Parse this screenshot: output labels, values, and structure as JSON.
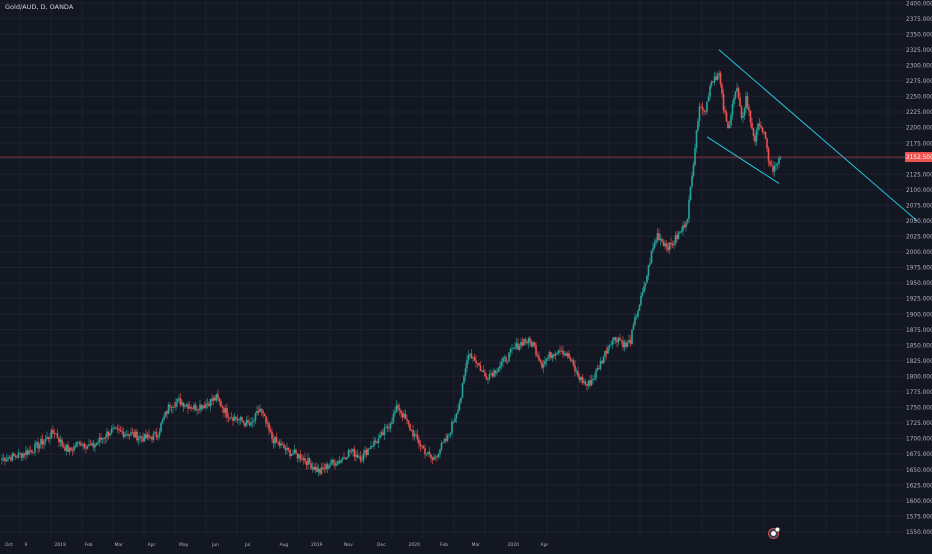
{
  "header": {
    "symbol_title": "Gold/AUD, D, OANDA"
  },
  "chart_data": {
    "type": "candlestick",
    "title": "",
    "symbol": "Gold/AUD",
    "interval": "D",
    "exchange": "OANDA",
    "ylim": [
      1540,
      2405
    ],
    "y_ticks": [
      1550,
      1575,
      1600,
      1625,
      1650,
      1675,
      1700,
      1725,
      1750,
      1775,
      1800,
      1825,
      1850,
      1875,
      1900,
      1925,
      1950,
      1975,
      2000,
      2025,
      2050,
      2075,
      2100,
      2125,
      2150,
      2175,
      2200,
      2225,
      2250,
      2275,
      2300,
      2325,
      2350,
      2375,
      2400
    ],
    "y_tick_decimals": 3,
    "x_tick_labels": [
      "Oct",
      "9",
      "2019",
      "Feb",
      "Mar",
      "Apr",
      "May",
      "Jun",
      "Jul",
      "Aug",
      "2019",
      "Nov",
      "Dec",
      "2020",
      "Feb",
      "Mar",
      "2020",
      "Apr"
    ],
    "x_tick_index": [
      2,
      15,
      35,
      55,
      75,
      97,
      118,
      140,
      162,
      185,
      206,
      228,
      250,
      271,
      292,
      313,
      337,
      359
    ],
    "current_price": 2152.5,
    "current_price_label": "2152.500",
    "grid": true,
    "colors": {
      "up": "#26a69a",
      "down": "#ef5350",
      "price_line": "#ef5350",
      "trendline": "#26c6da",
      "grid": "#1e2230",
      "text": "#b2b5be"
    },
    "waypoints": [
      [
        0,
        1668
      ],
      [
        10,
        1672
      ],
      [
        20,
        1682
      ],
      [
        30,
        1700
      ],
      [
        35,
        1712
      ],
      [
        40,
        1690
      ],
      [
        45,
        1680
      ],
      [
        52,
        1694
      ],
      [
        60,
        1686
      ],
      [
        72,
        1712
      ],
      [
        85,
        1708
      ],
      [
        95,
        1700
      ],
      [
        103,
        1705
      ],
      [
        112,
        1755
      ],
      [
        118,
        1760
      ],
      [
        128,
        1750
      ],
      [
        135,
        1755
      ],
      [
        143,
        1765
      ],
      [
        150,
        1740
      ],
      [
        158,
        1730
      ],
      [
        166,
        1720
      ],
      [
        172,
        1748
      ],
      [
        180,
        1700
      ],
      [
        190,
        1680
      ],
      [
        200,
        1670
      ],
      [
        212,
        1646
      ],
      [
        218,
        1658
      ],
      [
        225,
        1665
      ],
      [
        232,
        1680
      ],
      [
        240,
        1670
      ],
      [
        246,
        1690
      ],
      [
        252,
        1700
      ],
      [
        258,
        1722
      ],
      [
        264,
        1752
      ],
      [
        270,
        1725
      ],
      [
        276,
        1700
      ],
      [
        282,
        1680
      ],
      [
        287,
        1665
      ],
      [
        292,
        1684
      ],
      [
        297,
        1700
      ],
      [
        302,
        1736
      ],
      [
        306,
        1768
      ],
      [
        311,
        1840
      ],
      [
        316,
        1825
      ],
      [
        322,
        1800
      ],
      [
        328,
        1808
      ],
      [
        336,
        1828
      ],
      [
        342,
        1845
      ],
      [
        348,
        1858
      ],
      [
        354,
        1852
      ],
      [
        360,
        1820
      ],
      [
        366,
        1835
      ],
      [
        372,
        1846
      ],
      [
        378,
        1830
      ],
      [
        384,
        1800
      ],
      [
        390,
        1785
      ],
      [
        395,
        1800
      ],
      [
        401,
        1832
      ],
      [
        406,
        1858
      ],
      [
        411,
        1862
      ],
      [
        416,
        1848
      ],
      [
        419,
        1858
      ],
      [
        423,
        1900
      ],
      [
        428,
        1940
      ],
      [
        433,
        1998
      ],
      [
        437,
        2028
      ],
      [
        441,
        2015
      ],
      [
        445,
        2008
      ],
      [
        450,
        2024
      ],
      [
        454,
        2038
      ],
      [
        457,
        2060
      ],
      [
        460,
        2120
      ],
      [
        463,
        2200
      ],
      [
        466,
        2240
      ],
      [
        469,
        2225
      ],
      [
        472,
        2270
      ],
      [
        475,
        2282
      ],
      [
        478,
        2285
      ],
      [
        481,
        2230
      ],
      [
        484,
        2196
      ],
      [
        487,
        2240
      ],
      [
        490,
        2262
      ],
      [
        493,
        2210
      ],
      [
        496,
        2248
      ],
      [
        499,
        2210
      ],
      [
        502,
        2180
      ],
      [
        505,
        2210
      ],
      [
        508,
        2188
      ],
      [
        511,
        2150
      ],
      [
        514,
        2128
      ],
      [
        517,
        2145
      ],
      [
        519,
        2148
      ]
    ],
    "trendlines": [
      {
        "from": [
          478,
          2325
        ],
        "to": [
          610,
          2050
        ]
      },
      {
        "from": [
          470,
          2185
        ],
        "to": [
          518,
          2110
        ]
      }
    ],
    "seed": 7
  },
  "icons": {
    "logo": "tradingview-logo-icon"
  }
}
